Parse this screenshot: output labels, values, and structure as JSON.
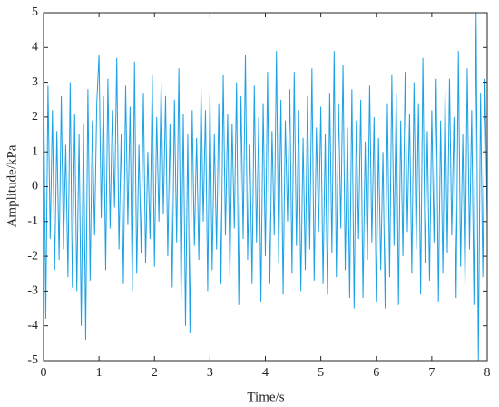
{
  "chart_data": {
    "type": "line",
    "xlabel": "Time/s",
    "ylabel": "Amplitude/kPa",
    "x": [
      0,
      0.04,
      0.08,
      0.12,
      0.16,
      0.2,
      0.24,
      0.28,
      0.32,
      0.36,
      0.4,
      0.44,
      0.48,
      0.52,
      0.56,
      0.6,
      0.64,
      0.68,
      0.72,
      0.76,
      0.8,
      0.84,
      0.88,
      0.92,
      0.96,
      1,
      1.04,
      1.08,
      1.12,
      1.16,
      1.2,
      1.24,
      1.28,
      1.32,
      1.36,
      1.4,
      1.44,
      1.48,
      1.52,
      1.56,
      1.6,
      1.64,
      1.68,
      1.72,
      1.76,
      1.8,
      1.84,
      1.88,
      1.92,
      1.96,
      2,
      2.04,
      2.08,
      2.12,
      2.16,
      2.2,
      2.24,
      2.28,
      2.32,
      2.36,
      2.4,
      2.44,
      2.48,
      2.52,
      2.56,
      2.6,
      2.64,
      2.68,
      2.72,
      2.76,
      2.8,
      2.84,
      2.88,
      2.92,
      2.96,
      3,
      3.04,
      3.08,
      3.12,
      3.16,
      3.2,
      3.24,
      3.28,
      3.32,
      3.36,
      3.4,
      3.44,
      3.48,
      3.52,
      3.56,
      3.6,
      3.64,
      3.68,
      3.72,
      3.76,
      3.8,
      3.84,
      3.88,
      3.92,
      3.96,
      4,
      4.04,
      4.08,
      4.12,
      4.16,
      4.2,
      4.24,
      4.28,
      4.32,
      4.36,
      4.4,
      4.44,
      4.48,
      4.52,
      4.56,
      4.6,
      4.64,
      4.68,
      4.72,
      4.76,
      4.8,
      4.84,
      4.88,
      4.92,
      4.96,
      5,
      5.04,
      5.08,
      5.12,
      5.16,
      5.2,
      5.24,
      5.28,
      5.32,
      5.36,
      5.4,
      5.44,
      5.48,
      5.52,
      5.56,
      5.6,
      5.64,
      5.68,
      5.72,
      5.76,
      5.8,
      5.84,
      5.88,
      5.92,
      5.96,
      6,
      6.04,
      6.08,
      6.12,
      6.16,
      6.2,
      6.24,
      6.28,
      6.32,
      6.36,
      6.4,
      6.44,
      6.48,
      6.52,
      6.56,
      6.6,
      6.64,
      6.68,
      6.72,
      6.76,
      6.8,
      6.84,
      6.88,
      6.92,
      6.96,
      7,
      7.04,
      7.08,
      7.12,
      7.16,
      7.2,
      7.24,
      7.28,
      7.32,
      7.36,
      7.4,
      7.44,
      7.48,
      7.52,
      7.56,
      7.6,
      7.64,
      7.68,
      7.72,
      7.76,
      7.8,
      7.84,
      7.88,
      7.92,
      7.96,
      8
    ],
    "series": [
      {
        "color": "#1ba1e6",
        "values": [
          3.4,
          -3.8,
          2.9,
          -1.5,
          2.2,
          -2.4,
          1.6,
          -2.1,
          2.6,
          -1.8,
          1.2,
          -2.6,
          3.0,
          -2.9,
          2.1,
          -3.0,
          1.5,
          -4.0,
          1.8,
          -4.4,
          2.8,
          -2.7,
          1.9,
          -1.4,
          2.4,
          3.8,
          -0.9,
          2.6,
          -2.4,
          3.1,
          -1.2,
          2.2,
          -0.6,
          3.7,
          -1.8,
          1.5,
          -2.8,
          2.9,
          -1.1,
          2.3,
          -3.0,
          3.6,
          -2.5,
          1.2,
          -1.9,
          2.7,
          -2.2,
          1.0,
          -1.5,
          3.2,
          -2.3,
          2.0,
          -1.0,
          3.0,
          -0.8,
          2.6,
          -2.0,
          1.8,
          -2.9,
          2.5,
          -1.6,
          3.4,
          -3.3,
          2.1,
          -4.0,
          1.5,
          -4.2,
          2.2,
          -1.7,
          1.4,
          -2.1,
          2.8,
          -1.0,
          2.2,
          -3.0,
          2.7,
          -2.4,
          1.5,
          -1.8,
          2.4,
          -2.8,
          3.2,
          -1.4,
          2.1,
          -2.6,
          1.8,
          -1.2,
          3.0,
          -3.4,
          2.6,
          -1.5,
          3.8,
          -2.1,
          1.2,
          -2.8,
          2.9,
          -1.6,
          2.0,
          -3.3,
          2.4,
          -2.0,
          3.3,
          -2.8,
          1.6,
          -1.4,
          3.9,
          -2.2,
          2.5,
          -3.1,
          1.9,
          -1.0,
          2.8,
          -2.5,
          3.3,
          -1.7,
          2.2,
          -3.0,
          1.4,
          -2.4,
          2.6,
          -1.8,
          3.4,
          -2.7,
          1.7,
          -1.3,
          2.3,
          -2.8,
          1.5,
          -3.1,
          2.7,
          -1.9,
          3.9,
          -2.6,
          2.4,
          -1.2,
          3.5,
          -2.4,
          1.7,
          -3.2,
          2.8,
          -3.5,
          1.9,
          -1.5,
          2.5,
          -3.2,
          1.3,
          -2.1,
          2.9,
          -1.6,
          2.0,
          -3.3,
          1.4,
          -2.4,
          1.0,
          -3.5,
          2.4,
          -2.6,
          3.2,
          -1.7,
          2.7,
          -3.4,
          1.9,
          -2.0,
          3.3,
          -1.3,
          2.1,
          -2.5,
          3.0,
          -1.8,
          2.4,
          -3.1,
          3.7,
          -2.2,
          1.6,
          -2.7,
          2.2,
          -1.6,
          3.1,
          -3.3,
          1.9,
          -2.5,
          2.8,
          -1.9,
          3.1,
          -1.4,
          2.0,
          -3.2,
          3.9,
          -2.3,
          1.5,
          -2.9,
          3.4,
          -1.8,
          2.2,
          -3.4,
          5.0,
          -5.0,
          2.7,
          -2.6,
          3.1,
          -1.0
        ]
      }
    ],
    "xlim": [
      0,
      8
    ],
    "xticks": [
      0,
      1,
      2,
      3,
      4,
      5,
      6,
      7,
      8
    ],
    "ylim": [
      -5,
      5
    ],
    "yticks": [
      -5,
      -4,
      -3,
      -2,
      -1,
      0,
      1,
      2,
      3,
      4,
      5
    ],
    "grid": false
  }
}
